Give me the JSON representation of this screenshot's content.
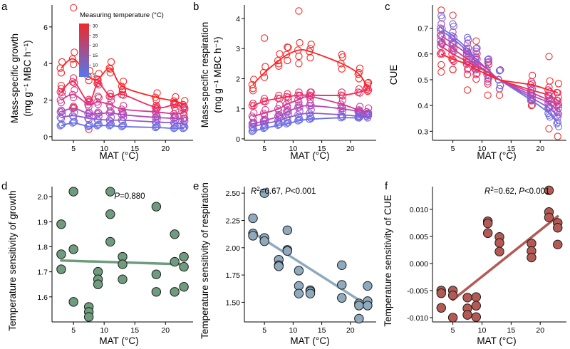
{
  "colors": {
    "warm": "#ee2a2a",
    "cool": "#5577ee"
  },
  "colorbar": {
    "title": "Measuring temperature (°C)",
    "ticks": [
      30,
      25,
      20,
      15,
      10,
      5
    ]
  },
  "chart_data": [
    {
      "panel": "a",
      "type": "scatter",
      "xlabel": "MAT (°C)",
      "ylabel_line1": "Mass-specific growth",
      "ylabel_line2": "(mg g⁻¹ MBC h⁻¹)",
      "xlim": [
        1.5,
        24.5
      ],
      "ylim": [
        -0.2,
        7.2
      ],
      "xticks": [
        5,
        10,
        15,
        20
      ],
      "yticks": [
        0,
        2,
        4,
        6
      ],
      "x_sites": [
        3,
        5,
        7.5,
        9,
        11,
        13,
        18.5,
        21.5,
        23
      ],
      "series": [
        {
          "temp": 30,
          "color": "#ff2222",
          "values": [
            3.75,
            4.25,
            3.3,
            3.15,
            3.75,
            2.75,
            2.15,
            1.95,
            1.75
          ]
        },
        {
          "temp": 25,
          "color": "#ef2a5a",
          "values": [
            2.45,
            3.0,
            1.9,
            2.9,
            2.2,
            2.3,
            1.6,
            1.75,
            1.55
          ]
        },
        {
          "temp": 20,
          "color": "#d33a90",
          "values": [
            2.0,
            2.3,
            1.75,
            1.9,
            1.75,
            1.5,
            1.35,
            1.25,
            1.3
          ]
        },
        {
          "temp": 15,
          "color": "#b449b7",
          "values": [
            1.35,
            1.55,
            1.25,
            1.25,
            1.3,
            1.2,
            1.05,
            1.0,
            0.95
          ]
        },
        {
          "temp": 10,
          "color": "#8f59cf",
          "values": [
            1.05,
            1.15,
            1.0,
            0.95,
            0.9,
            0.9,
            0.8,
            0.75,
            0.7
          ]
        },
        {
          "temp": 5,
          "color": "#6a70e6",
          "values": [
            0.6,
            0.75,
            0.55,
            0.6,
            0.6,
            0.55,
            0.5,
            0.45,
            0.45
          ]
        }
      ],
      "extra_points": [
        [
          5,
          7.05
        ],
        [
          11,
          3.7
        ],
        [
          5,
          1.6
        ],
        [
          3,
          2.8
        ],
        [
          9,
          2.2
        ],
        [
          13,
          2.6
        ],
        [
          18.5,
          1.5
        ],
        [
          21.5,
          1.6
        ],
        [
          23,
          1.2
        ],
        [
          7.5,
          0.4
        ]
      ]
    },
    {
      "panel": "b",
      "type": "scatter",
      "xlabel": "MAT (°C)",
      "ylabel_line1": "Mass-specific respiration",
      "ylabel_line2": "(mg g⁻¹ MBC h⁻¹)",
      "xlim": [
        1.5,
        24.5
      ],
      "ylim": [
        -0.05,
        4.45
      ],
      "xticks": [
        5,
        10,
        15,
        20
      ],
      "yticks": [
        0,
        1,
        2,
        3,
        4
      ],
      "x_sites": [
        3,
        5,
        7.5,
        9,
        11,
        13,
        18.5,
        21.5,
        23
      ],
      "series": [
        {
          "temp": 30,
          "color": "#ff2222",
          "values": [
            1.8,
            2.2,
            2.6,
            2.8,
            2.95,
            2.9,
            2.5,
            2.15,
            1.7
          ]
        },
        {
          "temp": 25,
          "color": "#ef2a5a",
          "values": [
            1.1,
            1.25,
            1.35,
            1.4,
            1.45,
            1.45,
            1.45,
            1.55,
            1.65
          ]
        },
        {
          "temp": 20,
          "color": "#d33a90",
          "values": [
            0.75,
            0.85,
            1.0,
            1.15,
            1.3,
            1.4,
            1.15,
            0.95,
            0.9
          ]
        },
        {
          "temp": 15,
          "color": "#b449b7",
          "values": [
            0.5,
            0.6,
            0.75,
            0.9,
            1.05,
            1.1,
            1.0,
            0.9,
            0.8
          ]
        },
        {
          "temp": 10,
          "color": "#8f59cf",
          "values": [
            0.4,
            0.5,
            0.6,
            0.7,
            0.8,
            0.85,
            0.8,
            0.75,
            0.75
          ]
        },
        {
          "temp": 5,
          "color": "#6a70e6",
          "values": [
            0.25,
            0.35,
            0.45,
            0.5,
            0.6,
            0.65,
            0.7,
            0.7,
            0.75
          ]
        }
      ],
      "extra_points": [
        [
          11,
          4.25
        ],
        [
          5,
          3.35
        ],
        [
          9,
          3.05
        ],
        [
          13,
          3.0
        ],
        [
          7.5,
          2.5
        ],
        [
          18.5,
          2.8
        ],
        [
          21.5,
          2.2
        ],
        [
          23,
          1.85
        ],
        [
          3,
          1.6
        ],
        [
          11,
          2.5
        ]
      ]
    },
    {
      "panel": "c",
      "type": "scatter",
      "xlabel": "MAT (°C)",
      "ylabel_line1": "CUE",
      "xlim": [
        1.5,
        24.5
      ],
      "ylim": [
        0.265,
        0.79
      ],
      "xticks": [
        5,
        10,
        15,
        20
      ],
      "yticks": [
        0.3,
        0.4,
        0.5,
        0.6,
        0.7
      ],
      "x_sites": [
        3,
        5,
        7.5,
        9,
        11,
        13,
        18.5,
        21.5,
        23
      ],
      "series": [
        {
          "temp": 30,
          "color": "#ff2222",
          "values": [
            0.6,
            0.58,
            0.56,
            0.54,
            0.52,
            0.5,
            0.48,
            0.46,
            0.45
          ]
        },
        {
          "temp": 25,
          "color": "#ef2a5a",
          "values": [
            0.63,
            0.6,
            0.57,
            0.55,
            0.53,
            0.5,
            0.46,
            0.44,
            0.42
          ]
        },
        {
          "temp": 20,
          "color": "#d33a90",
          "values": [
            0.65,
            0.62,
            0.58,
            0.56,
            0.53,
            0.5,
            0.45,
            0.42,
            0.4
          ]
        },
        {
          "temp": 15,
          "color": "#b449b7",
          "values": [
            0.67,
            0.64,
            0.6,
            0.57,
            0.54,
            0.5,
            0.44,
            0.41,
            0.38
          ]
        },
        {
          "temp": 10,
          "color": "#8f59cf",
          "values": [
            0.69,
            0.66,
            0.61,
            0.58,
            0.54,
            0.5,
            0.43,
            0.39,
            0.36
          ]
        },
        {
          "temp": 5,
          "color": "#6a70e6",
          "values": [
            0.7,
            0.67,
            0.62,
            0.58,
            0.54,
            0.5,
            0.42,
            0.37,
            0.33
          ]
        }
      ],
      "extra_points": [
        [
          3,
          0.77
        ],
        [
          5,
          0.75
        ],
        [
          5,
          0.54
        ],
        [
          7.5,
          0.46
        ],
        [
          11,
          0.44
        ],
        [
          13,
          0.44
        ],
        [
          18.5,
          0.4
        ],
        [
          21.5,
          0.59
        ],
        [
          21.5,
          0.31
        ],
        [
          23,
          0.28
        ],
        [
          3,
          0.53
        ],
        [
          9,
          0.65
        ]
      ]
    },
    {
      "panel": "d",
      "type": "scatter",
      "xlabel": "MAT (°C)",
      "ylabel_line1": "Temperature sensitivity of growth",
      "annotation": "P=0.880",
      "xlim": [
        1.5,
        24.5
      ],
      "ylim": [
        1.5,
        2.04
      ],
      "xticks": [
        5,
        10,
        15,
        20
      ],
      "yticks": [
        1.6,
        1.7,
        1.8,
        1.9,
        2.0
      ],
      "point_color": "#6f9c7f",
      "points": [
        [
          3,
          1.89
        ],
        [
          3,
          1.77
        ],
        [
          3,
          1.71
        ],
        [
          5,
          2.02
        ],
        [
          5,
          1.79
        ],
        [
          5,
          1.58
        ],
        [
          7.5,
          1.56
        ],
        [
          7.5,
          1.54
        ],
        [
          7.5,
          1.52
        ],
        [
          9,
          1.7
        ],
        [
          9,
          1.67
        ],
        [
          9,
          1.65
        ],
        [
          11,
          2.02
        ],
        [
          11,
          1.93
        ],
        [
          11,
          1.82
        ],
        [
          13,
          1.76
        ],
        [
          13,
          1.73
        ],
        [
          13,
          1.67
        ],
        [
          18.5,
          1.96
        ],
        [
          18.5,
          1.69
        ],
        [
          18.5,
          1.62
        ],
        [
          21.5,
          1.85
        ],
        [
          21.5,
          1.74
        ],
        [
          21.5,
          1.62
        ],
        [
          23,
          1.76
        ],
        [
          23,
          1.72
        ],
        [
          23,
          1.64
        ]
      ],
      "fit": {
        "x": [
          3,
          23
        ],
        "y": [
          1.745,
          1.73
        ]
      }
    },
    {
      "panel": "e",
      "type": "scatter",
      "xlabel": "MAT (°C)",
      "ylabel_line1": "Temperature sensitivity of respiration",
      "annotation_r2": "0.67",
      "annotation_p": "<0.001",
      "xlim": [
        1.5,
        24.5
      ],
      "ylim": [
        1.32,
        2.56
      ],
      "xticks": [
        5,
        10,
        15,
        20
      ],
      "yticks": [
        1.5,
        1.75,
        2.0,
        2.25,
        2.5
      ],
      "point_color": "#8fa9bd",
      "points": [
        [
          3,
          2.27
        ],
        [
          3,
          2.13
        ],
        [
          3,
          2.11
        ],
        [
          5,
          2.5
        ],
        [
          5,
          2.09
        ],
        [
          5,
          2.06
        ],
        [
          7.5,
          1.89
        ],
        [
          7.5,
          1.84
        ],
        [
          7.5,
          1.83
        ],
        [
          9,
          2.16
        ],
        [
          9,
          1.98
        ],
        [
          9,
          1.97
        ],
        [
          11,
          1.79
        ],
        [
          11,
          1.65
        ],
        [
          11,
          1.58
        ],
        [
          13,
          1.61
        ],
        [
          13,
          1.6
        ],
        [
          13,
          1.58
        ],
        [
          18.5,
          1.84
        ],
        [
          18.5,
          1.66
        ],
        [
          18.5,
          1.54
        ],
        [
          21.5,
          1.49
        ],
        [
          21.5,
          1.47
        ],
        [
          21.5,
          1.35
        ],
        [
          23,
          1.65
        ],
        [
          23,
          1.51
        ],
        [
          23,
          1.47
        ]
      ],
      "fit": {
        "x": [
          3,
          23
        ],
        "y": [
          2.14,
          1.47
        ]
      }
    },
    {
      "panel": "f",
      "type": "scatter",
      "xlabel": "MAT (°C)",
      "ylabel_line1": "Temperature sensitivity of CUE",
      "annotation_r2": "0.62",
      "annotation_p": "<0.001",
      "xlim": [
        1.5,
        24.5
      ],
      "ylim": [
        -0.0108,
        0.0142
      ],
      "xticks": [
        5,
        10,
        15,
        20
      ],
      "yticks": [
        -0.01,
        -0.005,
        0.0,
        0.005,
        0.01
      ],
      "point_color": "#b35a55",
      "points": [
        [
          3,
          -0.005
        ],
        [
          3,
          -0.0055
        ],
        [
          3,
          -0.0082
        ],
        [
          5,
          -0.005
        ],
        [
          5,
          -0.0059
        ],
        [
          5,
          -0.01
        ],
        [
          7.5,
          -0.0063
        ],
        [
          7.5,
          -0.0083
        ],
        [
          7.5,
          -0.0095
        ],
        [
          9,
          -0.0062
        ],
        [
          9,
          -0.0078
        ],
        [
          9,
          -0.0099
        ],
        [
          11,
          0.0078
        ],
        [
          11,
          0.0074
        ],
        [
          11,
          0.0056
        ],
        [
          13,
          0.0049
        ],
        [
          13,
          0.0038
        ],
        [
          13,
          0.0022
        ],
        [
          18.5,
          0.0037
        ],
        [
          18.5,
          0.0023
        ],
        [
          18.5,
          0.0011
        ],
        [
          21.5,
          0.0135
        ],
        [
          21.5,
          0.0095
        ],
        [
          21.5,
          0.0085
        ],
        [
          23,
          0.0075
        ],
        [
          23,
          0.0066
        ],
        [
          23,
          0.0035
        ]
      ],
      "fit": {
        "x": [
          5,
          23
        ],
        "y": [
          -0.0067,
          0.0087
        ]
      }
    }
  ]
}
